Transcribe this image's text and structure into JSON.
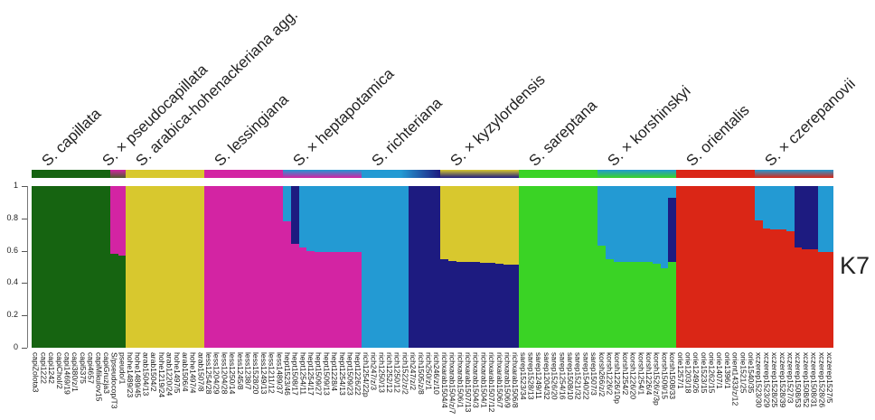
{
  "chart_data": {
    "type": "bar",
    "subtype": "stacked-admixture",
    "k_label": "K7",
    "ylim": [
      0,
      1
    ],
    "yticks": [
      "1",
      "0.8",
      "0.6",
      "0.4",
      "0.2",
      "0"
    ],
    "grid": false,
    "clusters": {
      "dkgreen": "#166411",
      "magenta": "#d324a3",
      "yellow": "#d8c82e",
      "cyan": "#239ad3",
      "navy": "#1d1b80",
      "green": "#3ad325",
      "red": "#da2616"
    },
    "groups": [
      {
        "name": "S. capillata",
        "band": [
          "#166411",
          "#166411"
        ],
        "samples": [
          {
            "id": "capiZolota3",
            "q": {
              "dkgreen": 1
            }
          },
          {
            "id": "capi1222",
            "q": {
              "dkgreen": 1
            }
          },
          {
            "id": "capi1242",
            "q": {
              "dkgreen": 1
            }
          },
          {
            "id": "capiChol/2",
            "q": {
              "dkgreen": 1
            }
          },
          {
            "id": "capi1469/19",
            "q": {
              "dkgreen": 1
            }
          },
          {
            "id": "capi380/z/1",
            "q": {
              "dkgreen": 1
            }
          },
          {
            "id": "capi5375",
            "q": {
              "dkgreen": 1
            }
          },
          {
            "id": "capi4657",
            "q": {
              "dkgreen": 1
            }
          },
          {
            "id": "capiMikulov15",
            "q": {
              "dkgreen": 1
            }
          },
          {
            "id": "capiGruzja3",
            "q": {
              "dkgreen": 1
            }
          }
        ]
      },
      {
        "name": "S. × pseudocapillata",
        "band": [
          "#d324a3",
          "#4d5a2a"
        ],
        "samples": [
          {
            "id": "S/pseudocop/T3",
            "q": {
              "dkgreen": 0.58,
              "magenta": 0.42
            }
          },
          {
            "id": "pseudo/1",
            "q": {
              "dkgreen": 0.57,
              "magenta": 0.43
            }
          }
        ]
      },
      {
        "name": "S. arabica-hohenackeriana agg.",
        "band": [
          "#d8c82e",
          "#d8c82e"
        ],
        "samples": [
          {
            "id": "hohe1489/23",
            "q": {
              "yellow": 1
            }
          },
          {
            "id": "hohe1489/45",
            "q": {
              "yellow": 1
            }
          },
          {
            "id": "arab1504/13",
            "q": {
              "yellow": 1
            }
          },
          {
            "id": "arab1504/2",
            "q": {
              "yellow": 1
            }
          },
          {
            "id": "hohe1219/24",
            "q": {
              "yellow": 1
            }
          },
          {
            "id": "arab1220/24",
            "q": {
              "yellow": 1
            }
          },
          {
            "id": "hohe1497/5",
            "q": {
              "yellow": 1
            }
          },
          {
            "id": "arab1506/4",
            "q": {
              "yellow": 1
            }
          },
          {
            "id": "hohe1497/4",
            "q": {
              "yellow": 1
            }
          },
          {
            "id": "arab1507/8",
            "q": {
              "yellow": 1
            }
          }
        ]
      },
      {
        "name": "S. lessingiana",
        "band": [
          "#d324a3",
          "#d324a3"
        ],
        "samples": [
          {
            "id": "less1254/28",
            "q": {
              "magenta": 1
            }
          },
          {
            "id": "less1204/29",
            "q": {
              "magenta": 1
            }
          },
          {
            "id": "less1204/28",
            "q": {
              "magenta": 1
            }
          },
          {
            "id": "less1250/14",
            "q": {
              "magenta": 1
            }
          },
          {
            "id": "less1245/8",
            "q": {
              "magenta": 1
            }
          },
          {
            "id": "less1238/7",
            "q": {
              "magenta": 1
            }
          },
          {
            "id": "less1528/20",
            "q": {
              "magenta": 1
            }
          },
          {
            "id": "less1249/13",
            "q": {
              "magenta": 1
            }
          },
          {
            "id": "less1211/12",
            "q": {
              "magenta": 1
            }
          },
          {
            "id": "less1489/37",
            "q": {
              "magenta": 1
            }
          }
        ]
      },
      {
        "name": "S. × heptapotamica",
        "band": [
          "#239ad3",
          "#d324a3"
        ],
        "samples": [
          {
            "id": "hept1523/46",
            "q": {
              "magenta": 0.78,
              "cyan": 0.22
            }
          },
          {
            "id": "hept1508/17",
            "q": {
              "magenta": 0.64,
              "navy": 0.36
            }
          },
          {
            "id": "hept1254/11",
            "q": {
              "magenta": 0.62,
              "cyan": 0.38
            }
          },
          {
            "id": "hept1254/17",
            "q": {
              "magenta": 0.6,
              "cyan": 0.4
            }
          },
          {
            "id": "hept1509/27",
            "q": {
              "magenta": 0.59,
              "cyan": 0.41
            }
          },
          {
            "id": "hept1509/13",
            "q": {
              "magenta": 0.59,
              "cyan": 0.41
            }
          },
          {
            "id": "hept1228/4",
            "q": {
              "magenta": 0.59,
              "cyan": 0.41
            }
          },
          {
            "id": "hept1254/13",
            "q": {
              "magenta": 0.59,
              "cyan": 0.41
            }
          },
          {
            "id": "hept1509/23",
            "q": {
              "magenta": 0.59,
              "cyan": 0.41
            }
          },
          {
            "id": "hept1226/22",
            "q": {
              "magenta": 0.59,
              "cyan": 0.41
            }
          }
        ]
      },
      {
        "name": "S. richteriana",
        "band": [
          "#239ad3",
          "#1d1b80"
        ],
        "band_direction": "horizontal",
        "samples": [
          {
            "id": "rich1254/22p",
            "q": {
              "cyan": 1
            }
          },
          {
            "id": "rich247/z/3",
            "q": {
              "cyan": 1
            }
          },
          {
            "id": "rich1250/13",
            "q": {
              "cyan": 1
            }
          },
          {
            "id": "rich1252/12",
            "q": {
              "cyan": 1
            }
          },
          {
            "id": "rich1250/12",
            "q": {
              "cyan": 1
            }
          },
          {
            "id": "rich1522/z/2",
            "q": {
              "cyan": 1
            }
          },
          {
            "id": "rich247/z/2",
            "q": {
              "navy": 1
            }
          },
          {
            "id": "rich1505/z/8",
            "q": {
              "navy": 1
            }
          },
          {
            "id": "rich250/z/1",
            "q": {
              "navy": 1
            }
          },
          {
            "id": "rich246/z/10",
            "q": {
              "navy": 1
            }
          }
        ]
      },
      {
        "name": "S. × kyzylordensis",
        "band": [
          "#d8c82e",
          "#1d1b80"
        ],
        "samples": [
          {
            "id": "richxarab1504/4",
            "q": {
              "navy": 0.545,
              "yellow": 0.455
            }
          },
          {
            "id": "richxarab1504/z/7",
            "q": {
              "navy": 0.535,
              "yellow": 0.465
            }
          },
          {
            "id": "richxarab1506/1",
            "q": {
              "navy": 0.53,
              "yellow": 0.47
            }
          },
          {
            "id": "richxarab1507/13",
            "q": {
              "navy": 0.53,
              "yellow": 0.47
            }
          },
          {
            "id": "richxarab1504/3",
            "q": {
              "navy": 0.53,
              "yellow": 0.47
            }
          },
          {
            "id": "richxarab1504/1",
            "q": {
              "navy": 0.525,
              "yellow": 0.475
            }
          },
          {
            "id": "richxarab1507/12",
            "q": {
              "navy": 0.525,
              "yellow": 0.475
            }
          },
          {
            "id": "richxarab1506/7",
            "q": {
              "navy": 0.52,
              "yellow": 0.48
            }
          },
          {
            "id": "richxarab1506/9",
            "q": {
              "navy": 0.515,
              "yellow": 0.485
            }
          },
          {
            "id": "richxarab1506/8",
            "q": {
              "navy": 0.515,
              "yellow": 0.485
            }
          }
        ]
      },
      {
        "name": "S. sareptana",
        "band": [
          "#3ad325",
          "#3ad325"
        ],
        "samples": [
          {
            "id": "sarep1523/34",
            "q": {
              "green": 1
            }
          },
          {
            "id": "sarep1528/13",
            "q": {
              "green": 1
            }
          },
          {
            "id": "sarep1249/11",
            "q": {
              "green": 1
            }
          },
          {
            "id": "sarep1204/32",
            "q": {
              "green": 1
            }
          },
          {
            "id": "sarep1526/20",
            "q": {
              "green": 1
            }
          },
          {
            "id": "sarep1254/16",
            "q": {
              "green": 1
            }
          },
          {
            "id": "sarep1508/10",
            "q": {
              "green": 1
            }
          },
          {
            "id": "sarep1521/32",
            "q": {
              "green": 1
            }
          },
          {
            "id": "sarep1540/22",
            "q": {
              "green": 1
            }
          },
          {
            "id": "sarep1507/3",
            "q": {
              "green": 1
            }
          }
        ]
      },
      {
        "name": "S. × korshinskyi",
        "band": [
          "#239ad3",
          "#3ad325"
        ],
        "samples": [
          {
            "id": "korsh266/z/2",
            "q": {
              "green": 0.63,
              "cyan": 0.37
            }
          },
          {
            "id": "korsh1226/2",
            "q": {
              "green": 0.545,
              "cyan": 0.455
            }
          },
          {
            "id": "korsh1226/10p",
            "q": {
              "green": 0.53,
              "cyan": 0.47
            }
          },
          {
            "id": "korsh1254/2",
            "q": {
              "green": 0.53,
              "cyan": 0.47
            }
          },
          {
            "id": "korsh1226/20",
            "q": {
              "green": 0.53,
              "cyan": 0.47
            }
          },
          {
            "id": "korsh1254/1",
            "q": {
              "green": 0.53,
              "cyan": 0.47
            }
          },
          {
            "id": "korsh1226/4",
            "q": {
              "green": 0.53,
              "cyan": 0.47
            }
          },
          {
            "id": "korsh1526/z/3p",
            "q": {
              "green": 0.52,
              "cyan": 0.48
            }
          },
          {
            "id": "korsh1509/15",
            "q": {
              "green": 0.49,
              "cyan": 0.51
            }
          },
          {
            "id": "korsh1508/33",
            "q": {
              "green": 0.53,
              "navy": 0.4,
              "cyan": 0.07
            }
          }
        ]
      },
      {
        "name": "S. orientalis",
        "band": [
          "#da2616",
          "#da2616"
        ],
        "samples": [
          {
            "id": "orie1257/1",
            "q": {
              "red": 1
            }
          },
          {
            "id": "orie1203/18",
            "q": {
              "red": 1
            }
          },
          {
            "id": "orie1249/26",
            "q": {
              "red": 1
            }
          },
          {
            "id": "orie1523/15",
            "q": {
              "red": 1
            }
          },
          {
            "id": "orie1262/15",
            "q": {
              "red": 1
            }
          },
          {
            "id": "orie1407/1",
            "q": {
              "red": 1
            }
          },
          {
            "id": "orie1396/1",
            "q": {
              "red": 1
            }
          },
          {
            "id": "orient1433/z/12",
            "q": {
              "red": 1
            }
          },
          {
            "id": "orie1521/25",
            "q": {
              "red": 1
            }
          },
          {
            "id": "orie1540/35",
            "q": {
              "red": 1
            }
          }
        ]
      },
      {
        "name": "S. × czerepanovii",
        "band": [
          "#239ad3",
          "#da2616"
        ],
        "samples": [
          {
            "id": "xczerep1523/30",
            "q": {
              "red": 0.79,
              "cyan": 0.21
            }
          },
          {
            "id": "xczerep1523/29",
            "q": {
              "red": 0.74,
              "cyan": 0.26
            }
          },
          {
            "id": "xczerep1528/25",
            "q": {
              "red": 0.73,
              "cyan": 0.27
            }
          },
          {
            "id": "xczerep1528/39",
            "q": {
              "red": 0.73,
              "cyan": 0.27
            }
          },
          {
            "id": "xczerep1527/3",
            "q": {
              "red": 0.72,
              "cyan": 0.28
            }
          },
          {
            "id": "xczerep1508/53",
            "q": {
              "red": 0.62,
              "navy": 0.38
            }
          },
          {
            "id": "xczerep1508/52",
            "q": {
              "red": 0.61,
              "navy": 0.39
            }
          },
          {
            "id": "xczerep1508/31",
            "q": {
              "red": 0.61,
              "navy": 0.39
            }
          },
          {
            "id": "xczerep1528/26",
            "q": {
              "red": 0.59,
              "cyan": 0.41
            }
          },
          {
            "id": "xczerep1527/5",
            "q": {
              "red": 0.59,
              "cyan": 0.41
            }
          }
        ]
      }
    ]
  }
}
